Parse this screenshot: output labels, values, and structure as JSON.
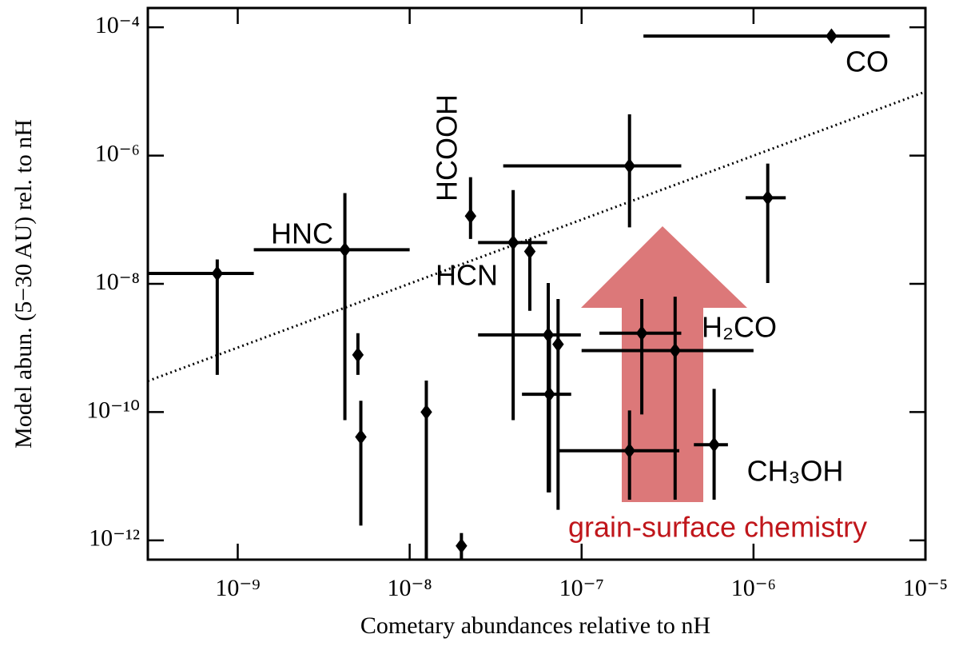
{
  "chart_data": {
    "type": "scatter",
    "x_label": "Cometary abundances relative to nH",
    "y_label": "Model abun. (5−30 AU) rel. to nH",
    "xscale": "log",
    "yscale": "log",
    "xlim": [
      3e-10,
      1e-05
    ],
    "ylim": [
      5e-13,
      0.0002
    ],
    "xticks": [
      {
        "value": 1e-09,
        "label": "10⁻⁹"
      },
      {
        "value": 1e-08,
        "label": "10⁻⁸"
      },
      {
        "value": 1e-07,
        "label": "10⁻⁷"
      },
      {
        "value": 1e-06,
        "label": "10⁻⁶"
      },
      {
        "value": 1e-05,
        "label": "10⁻⁵"
      }
    ],
    "yticks": [
      {
        "value": 1e-12,
        "label": "10⁻¹²"
      },
      {
        "value": 1e-10,
        "label": "10⁻¹⁰"
      },
      {
        "value": 1e-08,
        "label": "10⁻⁸"
      },
      {
        "value": 1e-06,
        "label": "10⁻⁶"
      },
      {
        "value": 0.0001,
        "label": "10⁻⁴"
      }
    ],
    "series": [
      {
        "color": "#000000",
        "x": [
          2.84e-06,
          7.6e-10,
          4.2e-09,
          5e-09,
          5.2e-09,
          1.25e-08,
          2e-08,
          2.26e-08,
          4e-08,
          5e-08,
          6.4e-08,
          6.5e-08,
          7.3e-08,
          1.9e-07,
          1.21e-06,
          2.24e-07,
          3.5e-07,
          1.9e-07,
          5.9e-07
        ],
        "y": [
          7.3e-05,
          1.45e-08,
          3.4e-08,
          7.8e-10,
          4.1e-11,
          1e-10,
          8.2e-13,
          1.14e-07,
          4.4e-08,
          3.2e-08,
          1.6e-09,
          1.9e-10,
          1.14e-09,
          6.9e-07,
          2.2e-07,
          1.7e-09,
          9.1e-10,
          2.5e-11,
          3.1e-11
        ],
        "x_low": [
          2.29e-07,
          3e-10,
          1.24e-09,
          null,
          null,
          null,
          null,
          null,
          2.5e-08,
          null,
          2.5e-08,
          4.5e-08,
          null,
          3.5e-08,
          9e-07,
          1.27e-07,
          1e-07,
          7.3e-08,
          4.5e-07
        ],
        "x_high": [
          6.2e-06,
          1.24e-09,
          1e-08,
          null,
          null,
          null,
          null,
          null,
          6.3e-08,
          null,
          9.9e-08,
          8.7e-08,
          null,
          3.8e-07,
          1.54e-06,
          3.8e-07,
          1e-06,
          3.7e-07,
          7.1e-07
        ],
        "y_low": [
          null,
          3.8e-10,
          7.5e-11,
          3.8e-10,
          1.7e-12,
          5e-13,
          5e-13,
          5e-08,
          7.5e-11,
          3.8e-09,
          5.6e-12,
          5.6e-12,
          3e-12,
          7.6e-08,
          1.03e-08,
          9.2e-11,
          4.3e-12,
          4.3e-12,
          4.3e-12
        ],
        "y_high": [
          null,
          2.4e-08,
          2.6e-07,
          1.7e-09,
          1.5e-10,
          3.1e-10,
          1.3e-12,
          4.6e-07,
          2.9e-07,
          5e-08,
          1.03e-08,
          1.6e-09,
          5.8e-09,
          4.4e-06,
          7.5e-07,
          5.8e-09,
          6.3e-09,
          1.06e-10,
          2.3e-10
        ]
      }
    ],
    "reference_line": {
      "x": [
        3e-10,
        1e-05
      ],
      "y": [
        3.05e-10,
        9.9e-06
      ]
    },
    "annotations": [
      "CO",
      "HCOOH",
      "HNC",
      "HCN",
      "H₂CO",
      "CH₃OH",
      "grain-surface chemistry"
    ]
  }
}
